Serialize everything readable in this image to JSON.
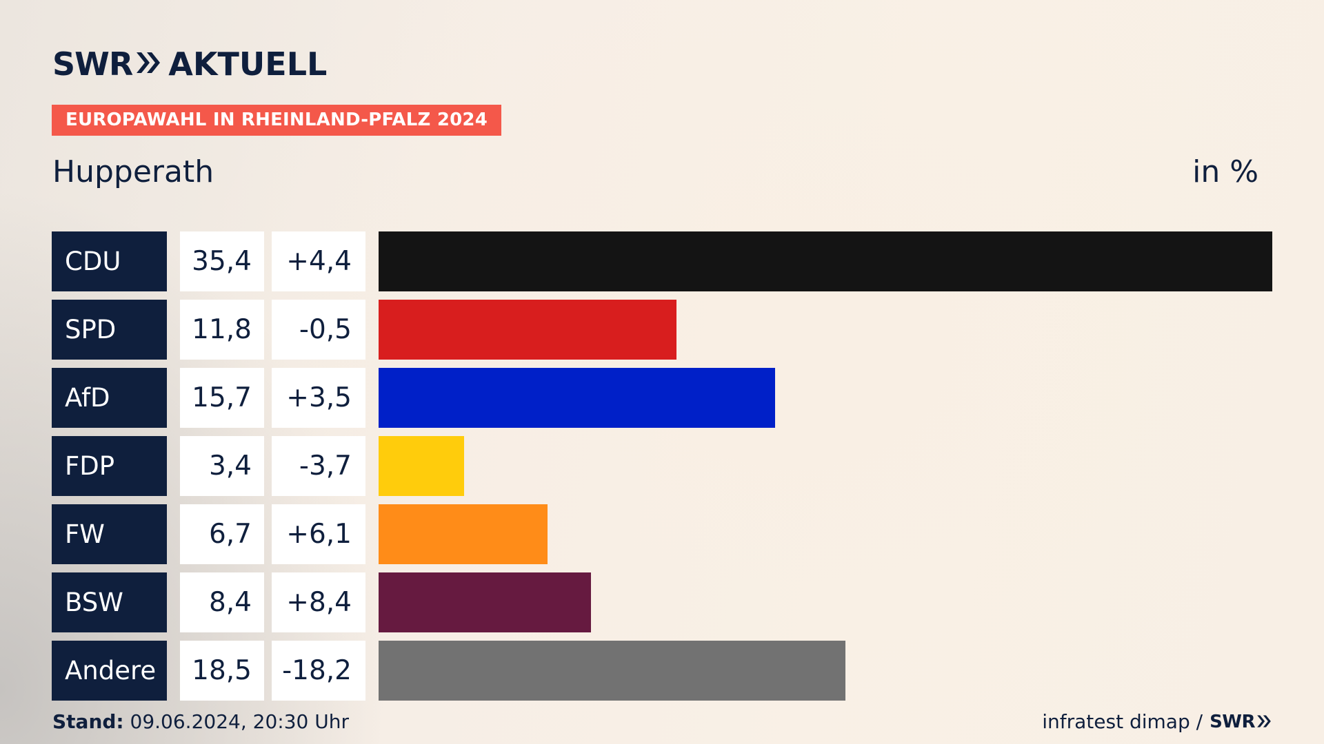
{
  "header": {
    "logo_swr": "SWR",
    "logo_aktuell": "AKTUELL",
    "tag": "EUROPAWAHL IN RHEINLAND-PFALZ 2024",
    "place": "Hupperath",
    "unit": "in %"
  },
  "chart_data": {
    "type": "bar",
    "orientation": "horizontal",
    "title": "EUROPAWAHL IN RHEINLAND-PFALZ 2024",
    "subtitle": "Hupperath",
    "unit": "in %",
    "categories": [
      "CDU",
      "SPD",
      "AfD",
      "FDP",
      "FW",
      "BSW",
      "Andere"
    ],
    "values": [
      35.4,
      11.8,
      15.7,
      3.4,
      6.7,
      8.4,
      18.5
    ],
    "value_labels": [
      "35,4",
      "11,8",
      "15,7",
      "3,4",
      "6,7",
      "8,4",
      "18,5"
    ],
    "changes": [
      4.4,
      -0.5,
      3.5,
      -3.7,
      6.1,
      8.4,
      -18.2
    ],
    "change_labels": [
      "+4,4",
      "-0,5",
      "+3,5",
      "-3,7",
      "+6,1",
      "+8,4",
      "-18,2"
    ],
    "colors": [
      "#141414",
      "#d81e1e",
      "#0020c8",
      "#ffcc0c",
      "#ff8c18",
      "#661a40",
      "#727272"
    ],
    "xlim": [
      0,
      35.4
    ]
  },
  "footer": {
    "stand_label": "Stand:",
    "stand_value": " 09.06.2024, 20:30 Uhr",
    "source": "infratest dimap /",
    "source_swr": "SWR"
  },
  "colors": {
    "navy": "#0f1f3d",
    "accent": "#f4584a"
  }
}
